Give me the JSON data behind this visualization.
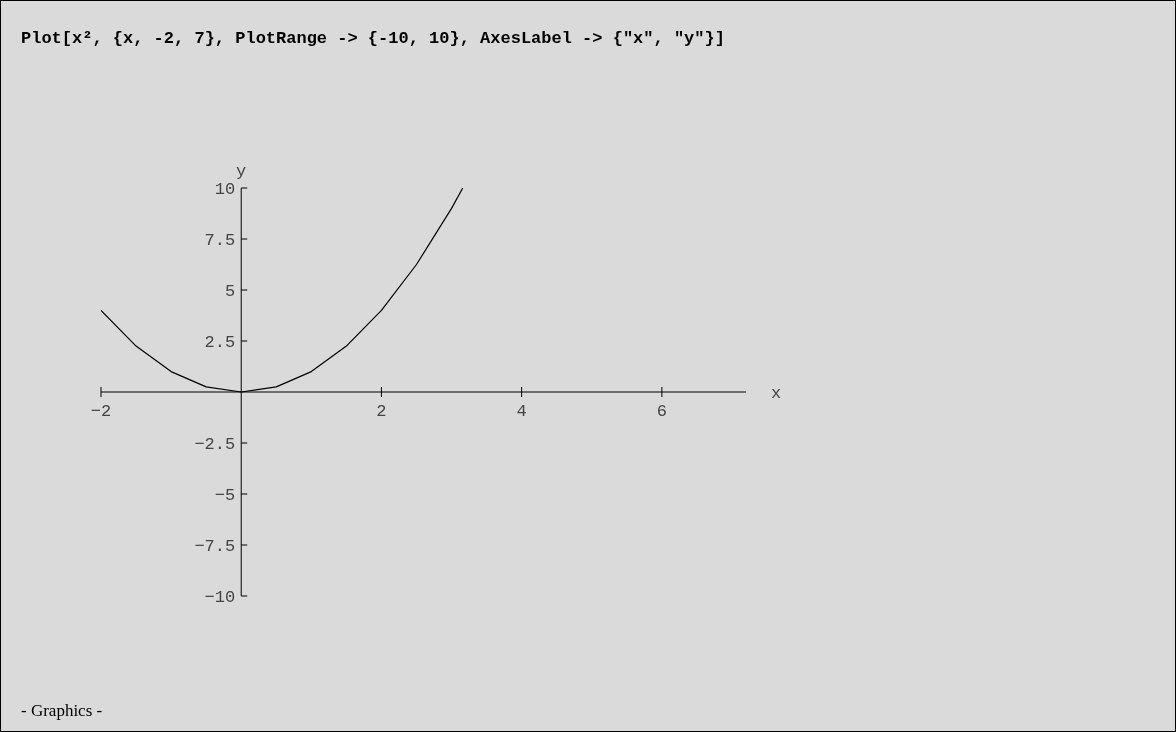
{
  "chart_data": {
    "type": "line",
    "title": "Plot[x², {x, -2, 7}, PlotRange -> {-10, 10}, AxesLabel -> {\"x\", \"y\"}]",
    "xlabel": "x",
    "ylabel": "y",
    "annotations": [
      "- Graphics -"
    ],
    "x": [
      -2,
      -1.5,
      -1,
      -0.5,
      0,
      0.5,
      1,
      1.5,
      2,
      2.5,
      3,
      3.16
    ],
    "series": [
      {
        "color": "#000000",
        "values": [
          4,
          2.25,
          1,
          0.25,
          0,
          0.25,
          1,
          2.25,
          4,
          6.25,
          9,
          10
        ]
      }
    ],
    "xlim": [
      -2,
      7.2
    ],
    "ylim": [
      -10,
      10
    ],
    "xticks": [
      -2,
      2,
      4,
      6
    ],
    "yticks": [
      -10,
      -7.5,
      -5,
      -2.5,
      2.5,
      5,
      7.5,
      10
    ],
    "marker": "none",
    "line_style": "solid"
  }
}
